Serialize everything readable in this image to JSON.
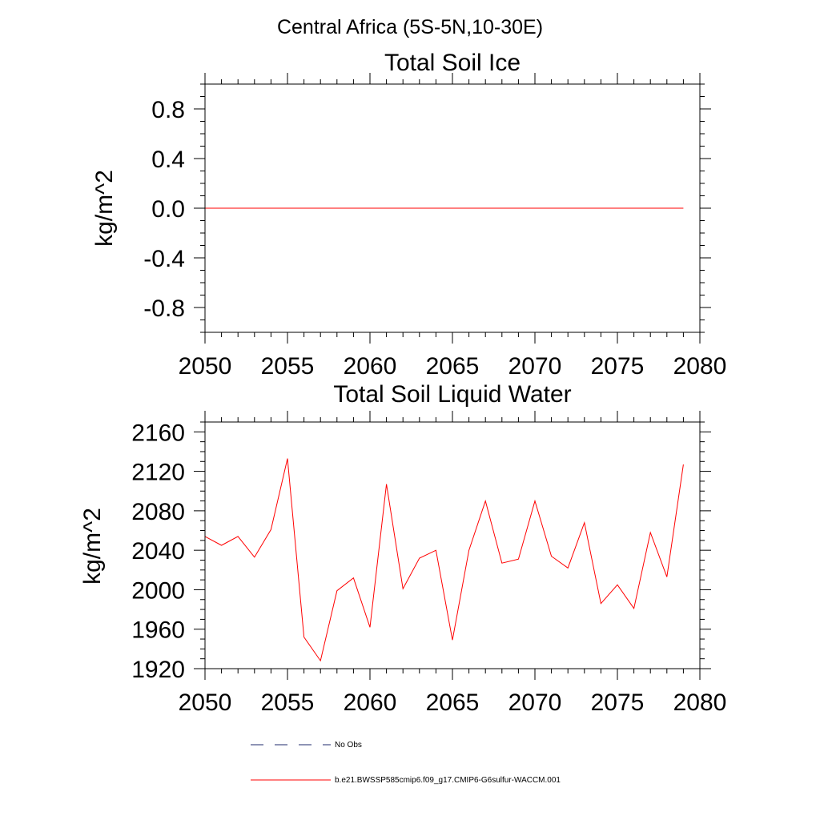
{
  "figure": {
    "suptitle": "Central Africa (5S-5N,10-30E)",
    "line_color": "#ff0000",
    "dash_color": "#1f2a6b"
  },
  "legend": {
    "entries": [
      {
        "label": "No Obs",
        "style": "dashed",
        "color": "#1f2a6b"
      },
      {
        "label": "b.e21.BWSSP585cmip6.f09_g17.CMIP6-G6sulfur-WACCM.001",
        "style": "solid",
        "color": "#ff0000"
      }
    ]
  },
  "chart_data": [
    {
      "type": "line",
      "title": "Total Soil Ice",
      "xlabel": "",
      "ylabel": "kg/m^2",
      "xlim": [
        2050,
        2080
      ],
      "ylim": [
        -1.0,
        1.0
      ],
      "xticks": [
        2050,
        2055,
        2060,
        2065,
        2070,
        2075,
        2080
      ],
      "xtick_labels": [
        "2050",
        "2055",
        "2060",
        "2065",
        "2070",
        "2075",
        "2080"
      ],
      "yticks": [
        -0.8,
        -0.4,
        0.0,
        0.4,
        0.8
      ],
      "ytick_labels": [
        "-0.8",
        "-0.4",
        "0.0",
        "0.4",
        "0.8"
      ],
      "grid": false,
      "series": [
        {
          "name": "b.e21.BWSSP585cmip6.f09_g17.CMIP6-G6sulfur-WACCM.001",
          "color": "#ff0000",
          "x": [
            2050,
            2051,
            2052,
            2053,
            2054,
            2055,
            2056,
            2057,
            2058,
            2059,
            2060,
            2061,
            2062,
            2063,
            2064,
            2065,
            2066,
            2067,
            2068,
            2069,
            2070,
            2071,
            2072,
            2073,
            2074,
            2075,
            2076,
            2077,
            2078,
            2079
          ],
          "values": [
            0,
            0,
            0,
            0,
            0,
            0,
            0,
            0,
            0,
            0,
            0,
            0,
            0,
            0,
            0,
            0,
            0,
            0,
            0,
            0,
            0,
            0,
            0,
            0,
            0,
            0,
            0,
            0,
            0,
            0
          ]
        }
      ]
    },
    {
      "type": "line",
      "title": "Total Soil Liquid Water",
      "xlabel": "",
      "ylabel": "kg/m^2",
      "xlim": [
        2050,
        2080
      ],
      "ylim": [
        1920,
        2170
      ],
      "xticks": [
        2050,
        2055,
        2060,
        2065,
        2070,
        2075,
        2080
      ],
      "xtick_labels": [
        "2050",
        "2055",
        "2060",
        "2065",
        "2070",
        "2075",
        "2080"
      ],
      "yticks": [
        1920,
        1960,
        2000,
        2040,
        2080,
        2120,
        2160
      ],
      "ytick_labels": [
        "1920",
        "1960",
        "2000",
        "2040",
        "2080",
        "2120",
        "2160"
      ],
      "grid": false,
      "series": [
        {
          "name": "b.e21.BWSSP585cmip6.f09_g17.CMIP6-G6sulfur-WACCM.001",
          "color": "#ff0000",
          "x": [
            2050,
            2051,
            2052,
            2053,
            2054,
            2055,
            2056,
            2057,
            2058,
            2059,
            2060,
            2061,
            2062,
            2063,
            2064,
            2065,
            2066,
            2067,
            2068,
            2069,
            2070,
            2071,
            2072,
            2073,
            2074,
            2075,
            2076,
            2077,
            2078,
            2079
          ],
          "values": [
            2054,
            2045,
            2054,
            2033,
            2061,
            2133,
            1952,
            1928,
            1999,
            2012,
            1962,
            2107,
            2001,
            2032,
            2040,
            1949,
            2040,
            2090,
            2027,
            2031,
            2090,
            2034,
            2022,
            2068,
            1986,
            2005,
            1981,
            2058,
            2013,
            2127
          ]
        }
      ]
    }
  ]
}
